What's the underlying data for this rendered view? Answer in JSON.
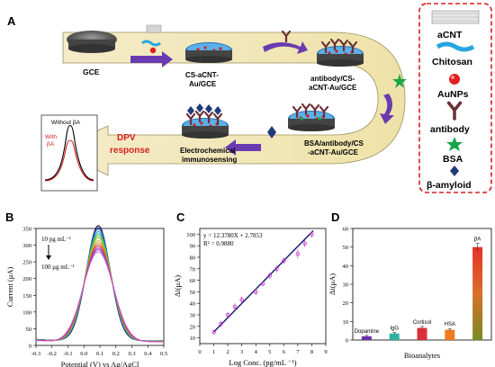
{
  "panels": {
    "a": "A",
    "b": "B",
    "c": "C",
    "d": "D"
  },
  "schematic": {
    "step_gce": "GCE",
    "step_cs_1": "CS-aCNT-",
    "step_cs_2": "Au/GCE",
    "step_ab_1": "antibody/CS-",
    "step_ab_2": "aCNT-Au/GCE",
    "step_bsa_1": "BSA/antibody/CS",
    "step_bsa_2": "-aCNT-Au/GCE",
    "sensing_1": "Electrochemical",
    "sensing_2": "immunosensing",
    "dpv_1": "DPV",
    "dpv_2": "response",
    "inset_without": "Without βA",
    "inset_with_1": "With",
    "inset_with_2": "βA"
  },
  "legend": {
    "items": [
      {
        "label": "aCNT",
        "icon": "acnt-icon"
      },
      {
        "label": "Chitosan",
        "icon": "chitosan-icon"
      },
      {
        "label": "AuNPs",
        "icon": "aunp-icon"
      },
      {
        "label": "antibody",
        "icon": "antibody-icon"
      },
      {
        "label": "BSA",
        "icon": "bsa-star-icon"
      },
      {
        "label": "β-amyloid",
        "icon": "beta-amyloid-icon"
      }
    ]
  },
  "chart_data": [
    {
      "type": "line",
      "panel": "B",
      "xlabel": "Potential (V) vs Ag/AgCl",
      "ylabel": "Current (μA)",
      "xlim": [
        -0.3,
        0.5
      ],
      "ylim": [
        0,
        350
      ],
      "x_ticks": [
        "-0.3",
        "-0.2",
        "-0.1",
        "0.0",
        "0.1",
        "0.2",
        "0.3",
        "0.4",
        "0.5"
      ],
      "y_ticks": [
        "0",
        "50",
        "100",
        "150",
        "200",
        "250",
        "300",
        "350"
      ],
      "annotation_top": "10 pg mL⁻¹",
      "annotation_bottom": "100 μg mL⁻¹",
      "peak_x": 0.09,
      "peak_values": [
        345,
        340,
        335,
        328,
        322,
        316,
        310,
        302,
        296,
        290,
        285,
        280,
        276,
        270
      ],
      "series_colors": [
        "#000000",
        "#3a3acd",
        "#1d6fd6",
        "#0fa3b8",
        "#19b06d",
        "#6dbf2e",
        "#a8b81d",
        "#c8a024",
        "#d67a26",
        "#d44a3a",
        "#c8367a",
        "#a03cc0",
        "#7a4ad8",
        "#d85ad8"
      ]
    },
    {
      "type": "scatter",
      "panel": "C",
      "xlabel": "Log Conc. (pg/mL ⁻¹)",
      "ylabel": "Δi(μA)",
      "xlim": [
        0,
        9
      ],
      "ylim": [
        5,
        105
      ],
      "x_ticks": [
        "0",
        "1",
        "2",
        "3",
        "4",
        "5",
        "6",
        "7",
        "8",
        "9"
      ],
      "y_ticks": [
        "10",
        "20",
        "30",
        "40",
        "50",
        "60",
        "70",
        "80",
        "90",
        "100"
      ],
      "equation": "y = 12.3780X + 2.7853",
      "r2": "R² = 0.9880",
      "fit": {
        "slope": 12.378,
        "intercept": 2.7853
      },
      "points": [
        {
          "x": 1.0,
          "y": 15
        },
        {
          "x": 1.5,
          "y": 22
        },
        {
          "x": 2.0,
          "y": 30
        },
        {
          "x": 2.5,
          "y": 37
        },
        {
          "x": 3.0,
          "y": 43
        },
        {
          "x": 4.0,
          "y": 50
        },
        {
          "x": 4.5,
          "y": 57
        },
        {
          "x": 5.0,
          "y": 64
        },
        {
          "x": 5.5,
          "y": 70
        },
        {
          "x": 6.0,
          "y": 77
        },
        {
          "x": 7.0,
          "y": 83
        },
        {
          "x": 7.5,
          "y": 92
        },
        {
          "x": 8.0,
          "y": 100
        }
      ],
      "errors": [
        2,
        3,
        2,
        3,
        3,
        3,
        2,
        3,
        3,
        3,
        4,
        3,
        3
      ]
    },
    {
      "type": "bar",
      "panel": "D",
      "xlabel": "Bioanalytes",
      "ylabel": "Δi(μA)",
      "ylim": [
        0,
        60
      ],
      "y_ticks": [
        "0",
        "10",
        "20",
        "30",
        "40",
        "50",
        "60"
      ],
      "categories": [
        "Dopamine",
        "IgG",
        "Cortisol",
        "HSA",
        "βA"
      ],
      "values": [
        2,
        3.5,
        6.5,
        5.5,
        50
      ],
      "errors": [
        0.5,
        0.6,
        0.8,
        0.7,
        2
      ],
      "colors": [
        "#6a2fb0",
        "#2bb3a0",
        "#d8303a",
        "#f07a1e",
        "#e8402a"
      ]
    }
  ]
}
